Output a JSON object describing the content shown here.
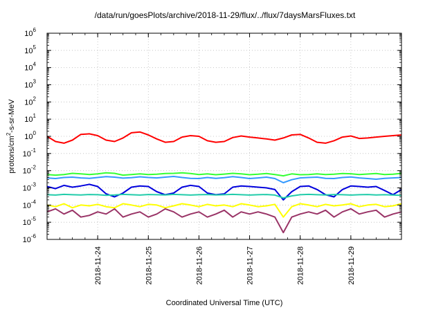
{
  "chart_data": {
    "type": "line",
    "title": "/data/run/goesPlots/archive/2018-11-29/flux/../flux/7daysMarsFluxes.txt",
    "xlabel": "Coordinated Universal Time (UTC)",
    "ylabel_base": "protons/cm",
    "ylabel_sup": "2",
    "ylabel_tail": "-s-sr-MeV",
    "y_scale": "log",
    "ylim": [
      1e-06,
      1000000.0
    ],
    "y_ticks": [
      {
        "base": "10",
        "exp": "-6"
      },
      {
        "base": "10",
        "exp": "-5"
      },
      {
        "base": "10",
        "exp": "-4"
      },
      {
        "base": "10",
        "exp": "-3"
      },
      {
        "base": "10",
        "exp": "-2"
      },
      {
        "base": "10",
        "exp": "-1"
      },
      {
        "base": "10",
        "exp": "0"
      },
      {
        "base": "10",
        "exp": "1"
      },
      {
        "base": "10",
        "exp": "2"
      },
      {
        "base": "10",
        "exp": "3"
      },
      {
        "base": "10",
        "exp": "4"
      },
      {
        "base": "10",
        "exp": "5"
      },
      {
        "base": "10",
        "exp": "6"
      }
    ],
    "xlim": [
      "2018-11-23 00:00",
      "2018-11-30 00:00"
    ],
    "x_ticks": [
      "2018-11-24",
      "2018-11-25",
      "2018-11-26",
      "2018-11-27",
      "2018-11-28",
      "2018-11-29"
    ],
    "grid": true,
    "series": [
      {
        "color": "#ff0000",
        "values": [
          1.0,
          0.5,
          0.4,
          0.6,
          1.3,
          1.4,
          1.1,
          0.6,
          0.5,
          0.8,
          1.6,
          1.8,
          1.2,
          0.7,
          0.45,
          0.5,
          0.9,
          1.1,
          1.0,
          0.55,
          0.45,
          0.5,
          0.85,
          1.05,
          0.9,
          0.8,
          0.7,
          0.6,
          0.8,
          1.2,
          1.3,
          0.8,
          0.45,
          0.4,
          0.55,
          0.9,
          1.05,
          0.75,
          0.8,
          0.9,
          1.0,
          1.1,
          1.2
        ]
      },
      {
        "color": "#33ff33",
        "values": [
          0.006,
          0.0055,
          0.006,
          0.007,
          0.0065,
          0.006,
          0.0065,
          0.0075,
          0.007,
          0.0055,
          0.006,
          0.0065,
          0.006,
          0.0062,
          0.0068,
          0.007,
          0.0075,
          0.0068,
          0.006,
          0.0065,
          0.0058,
          0.0063,
          0.007,
          0.0065,
          0.0058,
          0.0062,
          0.0068,
          0.006,
          0.005,
          0.0065,
          0.0058,
          0.006,
          0.0065,
          0.006,
          0.0062,
          0.0068,
          0.0066,
          0.006,
          0.0064,
          0.0068,
          0.006,
          0.0062,
          0.007
        ]
      },
      {
        "color": "#3399ff",
        "values": [
          0.0038,
          0.0035,
          0.004,
          0.0042,
          0.0038,
          0.0036,
          0.004,
          0.0045,
          0.0042,
          0.0037,
          0.0039,
          0.0044,
          0.004,
          0.0038,
          0.0042,
          0.0046,
          0.004,
          0.0036,
          0.0035,
          0.004,
          0.0036,
          0.0039,
          0.0045,
          0.004,
          0.0035,
          0.0038,
          0.0042,
          0.0035,
          0.002,
          0.003,
          0.0038,
          0.004,
          0.0042,
          0.0036,
          0.0035,
          0.004,
          0.0043,
          0.0038,
          0.0035,
          0.0032,
          0.0036,
          0.0038,
          0.004
        ]
      },
      {
        "color": "#0000dd",
        "values": [
          0.0012,
          0.0009,
          0.0014,
          0.0011,
          0.0013,
          0.0016,
          0.0012,
          0.00045,
          0.0003,
          0.0005,
          0.0011,
          0.0013,
          0.0012,
          0.0006,
          0.0004,
          0.0005,
          0.0011,
          0.0014,
          0.0012,
          0.0005,
          0.0004,
          0.00045,
          0.0011,
          0.0013,
          0.0012,
          0.0011,
          0.001,
          0.0008,
          0.0002,
          0.0006,
          0.0012,
          0.0013,
          0.0008,
          0.0004,
          0.0003,
          0.0008,
          0.0013,
          0.0012,
          0.0011,
          0.0012,
          0.0007,
          0.0004,
          0.0008
        ]
      },
      {
        "color": "#22ccaa",
        "values": [
          0.0004,
          0.00038,
          0.00042,
          0.0004,
          0.00039,
          0.00041,
          0.0004,
          0.00037,
          0.00039,
          0.00042,
          0.0004,
          0.00038,
          0.00041,
          0.0004,
          0.00039,
          0.00042,
          0.0004,
          0.00038,
          0.0004,
          0.00041,
          0.00039,
          0.0004,
          0.00042,
          0.0004,
          0.00038,
          0.0004,
          0.00041,
          0.00038,
          0.00026,
          0.00034,
          0.0004,
          0.00042,
          0.0004,
          0.00039,
          0.00041,
          0.0004,
          0.00038,
          0.0004,
          0.00041,
          0.00039,
          0.0004,
          0.00038,
          0.00037
        ]
      },
      {
        "color": "#ffff00",
        "values": [
          0.0001,
          8e-05,
          0.00012,
          7e-05,
          0.0001,
          9e-05,
          0.00011,
          8e-05,
          7e-05,
          0.00012,
          0.0001,
          8e-05,
          0.00011,
          0.0001,
          7e-05,
          9e-05,
          0.00012,
          0.0001,
          8e-05,
          0.00011,
          9e-05,
          0.0001,
          8e-05,
          0.00012,
          0.0001,
          8e-05,
          9e-05,
          0.00011,
          2e-05,
          8e-05,
          0.00012,
          0.0001,
          8e-05,
          0.00011,
          9e-05,
          0.0001,
          0.00012,
          8e-05,
          0.0001,
          0.00011,
          8e-05,
          9e-05,
          0.00012
        ]
      },
      {
        "color": "#993366",
        "values": [
          4e-05,
          6e-05,
          3e-05,
          5e-05,
          2e-05,
          2.5e-05,
          4e-05,
          3e-05,
          6e-05,
          2e-05,
          3e-05,
          4e-05,
          2e-05,
          3e-05,
          6e-05,
          4e-05,
          2e-05,
          3e-05,
          4e-05,
          2e-05,
          3e-05,
          5e-05,
          2e-05,
          4e-05,
          3e-05,
          4e-05,
          3e-05,
          2e-05,
          2.5e-06,
          2e-05,
          3e-05,
          4e-05,
          3e-05,
          5e-05,
          2e-05,
          4e-05,
          6e-05,
          3e-05,
          4e-05,
          5e-05,
          2e-05,
          3e-05,
          4e-05
        ]
      }
    ]
  }
}
